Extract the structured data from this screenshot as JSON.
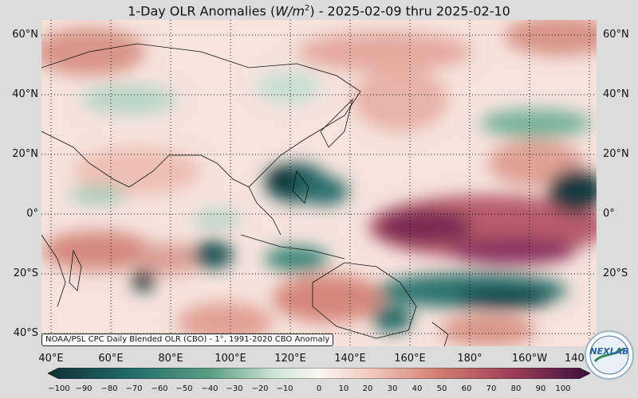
{
  "title": {
    "prefix": "1-Day OLR Anomalies (",
    "unit_w": "W/m",
    "unit_exp": "2",
    "suffix": ") - 2025-02-09 thru 2025-02-10"
  },
  "map": {
    "lat_ticks": [
      "60°N",
      "40°N",
      "20°N",
      "0°",
      "20°S",
      "40°S"
    ],
    "lon_ticks": [
      "40°E",
      "60°E",
      "80°E",
      "100°E",
      "120°E",
      "140°E",
      "160°E",
      "180°",
      "160°W",
      "140"
    ],
    "gridlines": "dotted"
  },
  "attribution": "NOAA/PSL CPC Daily Blended OLR (CBO) - 1°, 1991-2020 CBO Anomaly",
  "colorbar": {
    "ticks": [
      "−100",
      "−90",
      "−80",
      "−70",
      "−60",
      "−50",
      "−40",
      "−30",
      "−20",
      "−10",
      "0",
      "10",
      "20",
      "30",
      "40",
      "50",
      "60",
      "70",
      "80",
      "90",
      "100"
    ],
    "colors": {
      "neg_extreme": "#0f2f33",
      "neg_strong": "#1f6b68",
      "neg_mid": "#5a9f85",
      "neg_light": "#cfe6d8",
      "neutral": "#fbf6f3",
      "pos_light": "#f1c6bb",
      "pos_mid": "#d47e72",
      "pos_strong": "#9b3c58",
      "pos_extreme": "#3c0f3a"
    }
  },
  "logo": {
    "text": "NEXLAB"
  }
}
